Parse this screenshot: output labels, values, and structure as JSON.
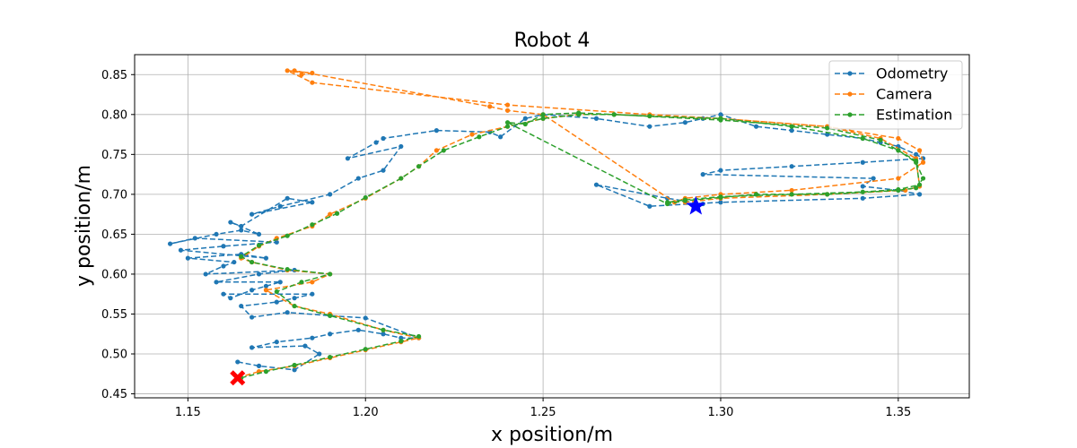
{
  "chart_data": {
    "type": "line",
    "title": "Robot 4",
    "xlabel": "x position/m",
    "ylabel": "y position/m",
    "xlim": [
      1.135,
      1.37
    ],
    "ylim": [
      0.445,
      0.875
    ],
    "x_ticks": [
      "1.15",
      "1.20",
      "1.25",
      "1.30",
      "1.35"
    ],
    "x_tick_values": [
      1.15,
      1.2,
      1.25,
      1.3,
      1.35
    ],
    "y_ticks": [
      "0.45",
      "0.50",
      "0.55",
      "0.60",
      "0.65",
      "0.70",
      "0.75",
      "0.80",
      "0.85"
    ],
    "y_tick_values": [
      0.45,
      0.5,
      0.55,
      0.6,
      0.65,
      0.7,
      0.75,
      0.8,
      0.85
    ],
    "grid": true,
    "legend_position": "top-right",
    "series": [
      {
        "name": "Odometry",
        "color": "#1f77b4",
        "style": "dashed-dot-markers",
        "x": [
          1.164,
          1.17,
          1.18,
          1.187,
          1.183,
          1.168,
          1.175,
          1.185,
          1.19,
          1.198,
          1.205,
          1.21,
          1.215,
          1.2,
          1.19,
          1.178,
          1.168,
          1.165,
          1.175,
          1.18,
          1.185,
          1.16,
          1.162,
          1.168,
          1.172,
          1.176,
          1.158,
          1.17,
          1.18,
          1.155,
          1.16,
          1.163,
          1.15,
          1.165,
          1.172,
          1.148,
          1.16,
          1.175,
          1.152,
          1.145,
          1.158,
          1.165,
          1.17,
          1.162,
          1.165,
          1.178,
          1.185,
          1.168,
          1.176,
          1.19,
          1.198,
          1.205,
          1.21,
          1.195,
          1.203,
          1.205,
          1.22,
          1.235,
          1.238,
          1.245,
          1.25,
          1.265,
          1.28,
          1.29,
          1.295,
          1.3,
          1.31,
          1.32,
          1.33,
          1.34,
          1.345,
          1.35,
          1.355,
          1.357,
          1.34,
          1.32,
          1.3,
          1.295,
          1.343,
          1.34,
          1.35,
          1.356,
          1.34,
          1.3,
          1.28,
          1.265,
          1.285,
          1.295
        ],
        "y": [
          0.49,
          0.485,
          0.48,
          0.5,
          0.51,
          0.508,
          0.515,
          0.52,
          0.525,
          0.53,
          0.525,
          0.52,
          0.52,
          0.545,
          0.548,
          0.552,
          0.546,
          0.56,
          0.565,
          0.57,
          0.575,
          0.575,
          0.57,
          0.58,
          0.585,
          0.59,
          0.59,
          0.6,
          0.605,
          0.6,
          0.61,
          0.615,
          0.62,
          0.625,
          0.62,
          0.63,
          0.635,
          0.64,
          0.645,
          0.638,
          0.65,
          0.655,
          0.65,
          0.665,
          0.66,
          0.695,
          0.69,
          0.675,
          0.685,
          0.7,
          0.72,
          0.73,
          0.76,
          0.745,
          0.765,
          0.77,
          0.78,
          0.778,
          0.772,
          0.795,
          0.8,
          0.795,
          0.785,
          0.79,
          0.795,
          0.8,
          0.785,
          0.78,
          0.775,
          0.77,
          0.765,
          0.76,
          0.75,
          0.745,
          0.74,
          0.735,
          0.73,
          0.725,
          0.72,
          0.71,
          0.705,
          0.7,
          0.695,
          0.69,
          0.685,
          0.712,
          0.695,
          0.688
        ]
      },
      {
        "name": "Camera",
        "color": "#ff7f0e",
        "style": "dashed-dot-markers",
        "x": [
          1.164,
          1.17,
          1.18,
          1.19,
          1.2,
          1.21,
          1.215,
          1.205,
          1.19,
          1.18,
          1.172,
          1.185,
          1.19,
          1.178,
          1.168,
          1.165,
          1.17,
          1.175,
          1.185,
          1.19,
          1.2,
          1.21,
          1.215,
          1.22,
          1.23,
          1.24,
          1.25,
          1.26,
          1.27,
          1.28,
          1.3,
          1.33,
          1.35,
          1.356,
          1.357,
          1.35,
          1.32,
          1.3,
          1.29,
          1.287,
          1.25,
          1.24,
          1.235,
          1.18,
          1.182,
          1.185,
          1.178,
          1.185,
          1.24,
          1.28,
          1.3,
          1.33,
          1.345,
          1.355,
          1.356,
          1.352,
          1.33,
          1.3,
          1.29
        ],
        "y": [
          0.47,
          0.478,
          0.485,
          0.495,
          0.505,
          0.515,
          0.52,
          0.53,
          0.55,
          0.56,
          0.58,
          0.59,
          0.6,
          0.605,
          0.615,
          0.62,
          0.635,
          0.645,
          0.66,
          0.675,
          0.695,
          0.72,
          0.735,
          0.755,
          0.775,
          0.785,
          0.795,
          0.8,
          0.8,
          0.798,
          0.795,
          0.785,
          0.77,
          0.755,
          0.74,
          0.72,
          0.705,
          0.7,
          0.695,
          0.69,
          0.8,
          0.805,
          0.81,
          0.855,
          0.85,
          0.852,
          0.855,
          0.84,
          0.812,
          0.8,
          0.795,
          0.785,
          0.77,
          0.745,
          0.71,
          0.705,
          0.7,
          0.695,
          0.69
        ]
      },
      {
        "name": "Estimation",
        "color": "#2ca02c",
        "style": "dashed-dot-markers",
        "x": [
          1.165,
          1.172,
          1.18,
          1.19,
          1.2,
          1.21,
          1.215,
          1.205,
          1.19,
          1.18,
          1.175,
          1.182,
          1.19,
          1.178,
          1.168,
          1.165,
          1.17,
          1.178,
          1.185,
          1.192,
          1.2,
          1.21,
          1.215,
          1.222,
          1.232,
          1.24,
          1.25,
          1.26,
          1.27,
          1.28,
          1.3,
          1.32,
          1.34,
          1.35,
          1.355,
          1.357,
          1.355,
          1.35,
          1.33,
          1.31,
          1.3,
          1.29,
          1.285,
          1.24,
          1.245,
          1.25,
          1.26,
          1.27,
          1.3,
          1.33,
          1.345,
          1.355,
          1.356,
          1.35,
          1.34,
          1.32,
          1.3,
          1.29,
          1.285
        ],
        "y": [
          0.47,
          0.478,
          0.486,
          0.496,
          0.506,
          0.516,
          0.522,
          0.53,
          0.548,
          0.56,
          0.578,
          0.59,
          0.6,
          0.606,
          0.615,
          0.622,
          0.636,
          0.648,
          0.662,
          0.676,
          0.696,
          0.72,
          0.735,
          0.755,
          0.772,
          0.785,
          0.795,
          0.8,
          0.8,
          0.798,
          0.795,
          0.785,
          0.77,
          0.755,
          0.74,
          0.72,
          0.708,
          0.705,
          0.7,
          0.7,
          0.696,
          0.692,
          0.688,
          0.79,
          0.788,
          0.8,
          0.802,
          0.8,
          0.793,
          0.783,
          0.768,
          0.742,
          0.712,
          0.706,
          0.703,
          0.7,
          0.697,
          0.693,
          0.69
        ]
      }
    ],
    "markers": [
      {
        "name": "start",
        "symbol": "x-cross",
        "color": "#ff0000",
        "x": 1.164,
        "y": 0.47
      },
      {
        "name": "end",
        "symbol": "star",
        "color": "#0000ff",
        "x": 1.293,
        "y": 0.685
      }
    ]
  }
}
